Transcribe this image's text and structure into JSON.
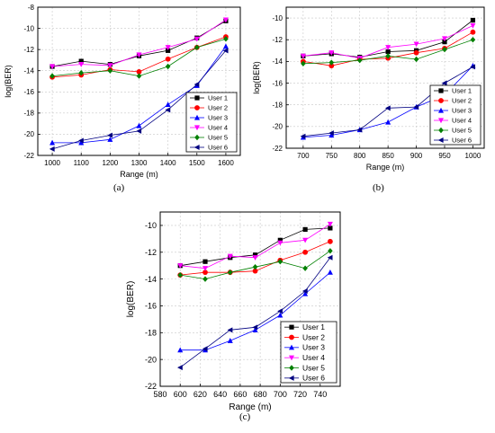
{
  "panels": [
    {
      "label": "(a)"
    },
    {
      "label": "(b)"
    },
    {
      "label": "(c)"
    }
  ],
  "series_styles": [
    {
      "name": "User 1",
      "color": "#000000",
      "marker": "square"
    },
    {
      "name": "User 2",
      "color": "#ff0000",
      "marker": "circle"
    },
    {
      "name": "User 3",
      "color": "#0000ff",
      "marker": "triangle-up"
    },
    {
      "name": "User 4",
      "color": "#ff00ff",
      "marker": "triangle-down"
    },
    {
      "name": "User 5",
      "color": "#008000",
      "marker": "diamond"
    },
    {
      "name": "User 6",
      "color": "#000080",
      "marker": "triangle-left"
    }
  ],
  "chart_data": [
    {
      "type": "line",
      "xlabel": "Range (m)",
      "ylabel": "log(BER)",
      "xlim": [
        950,
        1650
      ],
      "ylim": [
        -22,
        -8
      ],
      "xticks": [
        1000,
        1100,
        1200,
        1300,
        1400,
        1500,
        1600
      ],
      "yticks": [
        -22,
        -20,
        -18,
        -16,
        -14,
        -12,
        -10,
        -8
      ],
      "grid": true,
      "legend": "bottom-right",
      "x": [
        1000,
        1100,
        1200,
        1300,
        1400,
        1500,
        1600
      ],
      "series": [
        {
          "name": "User 1",
          "values": [
            -13.6,
            -13.1,
            -13.4,
            -12.6,
            -12.1,
            -10.9,
            -9.3
          ]
        },
        {
          "name": "User 2",
          "values": [
            -14.6,
            -14.4,
            -13.9,
            -14.1,
            -12.9,
            -11.8,
            -10.8
          ]
        },
        {
          "name": "User 3",
          "values": [
            -20.8,
            -20.8,
            -20.5,
            -19.2,
            -17.2,
            -15.4,
            -11.7
          ]
        },
        {
          "name": "User 4",
          "values": [
            -13.6,
            -13.4,
            -13.5,
            -12.5,
            -11.8,
            -11.0,
            -9.2
          ]
        },
        {
          "name": "User 5",
          "values": [
            -14.5,
            -14.2,
            -14.0,
            -14.5,
            -13.6,
            -11.8,
            -11.0
          ]
        },
        {
          "name": "User 6",
          "values": [
            -21.4,
            -20.6,
            -20.1,
            -19.7,
            -17.7,
            -15.3,
            -12.1
          ]
        }
      ]
    },
    {
      "type": "line",
      "xlabel": "Range (m)",
      "ylabel": "log(BER)",
      "xlim": [
        670,
        1020
      ],
      "ylim": [
        -22,
        -9
      ],
      "xticks": [
        700,
        750,
        800,
        850,
        900,
        950,
        1000
      ],
      "yticks": [
        -22,
        -20,
        -18,
        -16,
        -14,
        -12,
        -10
      ],
      "grid": true,
      "legend": "bottom-right",
      "x": [
        700,
        750,
        800,
        850,
        900,
        950,
        1000
      ],
      "series": [
        {
          "name": "User 1",
          "values": [
            -13.5,
            -13.3,
            -13.6,
            -13.1,
            -13.0,
            -12.2,
            -10.2
          ]
        },
        {
          "name": "User 2",
          "values": [
            -14.0,
            -14.4,
            -13.8,
            -13.7,
            -13.2,
            -12.8,
            -11.3
          ]
        },
        {
          "name": "User 3",
          "values": [
            -21.0,
            -20.8,
            -20.3,
            -19.6,
            -18.2,
            -17.1,
            -14.4
          ]
        },
        {
          "name": "User 4",
          "values": [
            -13.5,
            -13.2,
            -13.7,
            -12.7,
            -12.4,
            -11.9,
            -10.7
          ]
        },
        {
          "name": "User 5",
          "values": [
            -14.2,
            -14.1,
            -13.9,
            -13.5,
            -13.8,
            -12.9,
            -12.0
          ]
        },
        {
          "name": "User 6",
          "values": [
            -20.9,
            -20.6,
            -20.3,
            -18.3,
            -18.2,
            -16.0,
            -14.5
          ]
        }
      ]
    },
    {
      "type": "line",
      "xlabel": "Range (m)",
      "ylabel": "log(BER)",
      "xlim": [
        580,
        760
      ],
      "ylim": [
        -22,
        -9
      ],
      "xticks": [
        580,
        600,
        620,
        640,
        660,
        680,
        700,
        720,
        740
      ],
      "yticks": [
        -22,
        -20,
        -18,
        -16,
        -14,
        -12,
        -10
      ],
      "grid": true,
      "legend": "bottom-right",
      "x": [
        600,
        625,
        650,
        675,
        700,
        725,
        750
      ],
      "series": [
        {
          "name": "User 1",
          "values": [
            -13.0,
            -12.7,
            -12.4,
            -12.2,
            -11.1,
            -10.3,
            -10.2
          ]
        },
        {
          "name": "User 2",
          "values": [
            -13.7,
            -13.5,
            -13.5,
            -13.4,
            -12.6,
            -12.0,
            -11.2
          ]
        },
        {
          "name": "User 3",
          "values": [
            -19.3,
            -19.3,
            -18.6,
            -17.8,
            -16.7,
            -15.1,
            -13.5
          ]
        },
        {
          "name": "User 4",
          "values": [
            -13.0,
            -13.2,
            -12.3,
            -12.4,
            -11.3,
            -11.1,
            -9.9
          ]
        },
        {
          "name": "User 5",
          "values": [
            -13.7,
            -14.0,
            -13.5,
            -13.1,
            -12.7,
            -13.2,
            -11.9
          ]
        },
        {
          "name": "User 6",
          "values": [
            -20.6,
            -19.2,
            -17.8,
            -17.6,
            -16.4,
            -14.9,
            -12.4
          ]
        }
      ]
    }
  ]
}
